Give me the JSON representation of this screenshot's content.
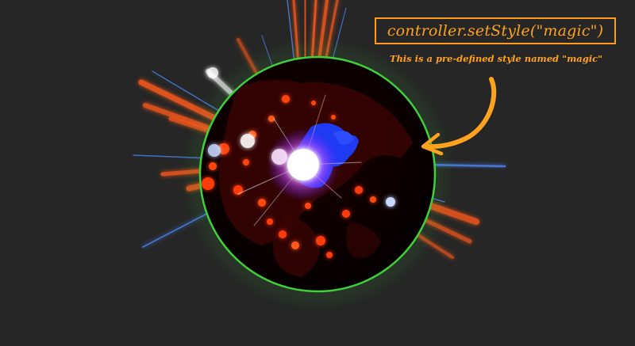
{
  "annotation": {
    "code_text": "controller.setStyle(\"magic\")",
    "caption_text": "This is a pre-defined style named \"magic\""
  },
  "colors": {
    "background": "#262626",
    "annotation": "#ffa21e",
    "globe_fill": "#080000",
    "globe_halo": "#3fd13a",
    "land_blue": "#1e3dff",
    "land_red": "#ff3a10",
    "beam_orange": "#ff5a1a",
    "beam_blue": "#4f8bff"
  },
  "icons": {
    "arrow": "curved-arrow-icon",
    "globe": "globe-icon"
  }
}
